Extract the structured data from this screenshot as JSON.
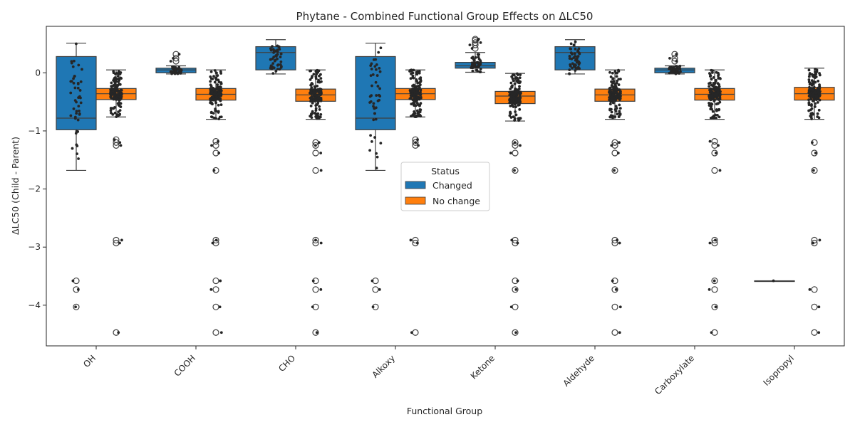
{
  "chart_data": {
    "type": "box",
    "title": "Phytane - Combined Functional Group Effects on ΔLC50",
    "xlabel": "Functional Group",
    "ylabel": "ΔLC50 (Child - Parent)",
    "ylim": [
      -4.7,
      0.8
    ],
    "yticks": [
      0,
      -1,
      -2,
      -3,
      -4
    ],
    "ytick_labels": [
      "0",
      "−1",
      "−2",
      "−3",
      "−4"
    ],
    "categories": [
      "OH",
      "COOH",
      "CHO",
      "Alkoxy",
      "Ketone",
      "Aldehyde",
      "Carboxylate",
      "Isopropyl"
    ],
    "legend": {
      "title": "Status",
      "placement": "center",
      "entries": [
        "Changed",
        "No change"
      ]
    },
    "colors": {
      "Changed": "#1f77b4",
      "No change": "#ff7f0e",
      "points": "#262626"
    },
    "series": [
      {
        "name": "Changed",
        "boxes": [
          {
            "q1": -0.98,
            "median": -0.78,
            "q3": 0.28,
            "whisker_low": -1.68,
            "whisker_high": 0.51,
            "outliers": [
              -3.58,
              -3.73,
              -4.03
            ]
          },
          {
            "q1": 0.0,
            "median": 0.05,
            "q3": 0.08,
            "whisker_low": -0.02,
            "whisker_high": 0.12,
            "outliers": [
              0.2,
              0.25,
              0.32
            ]
          },
          {
            "q1": 0.05,
            "median": 0.35,
            "q3": 0.45,
            "whisker_low": -0.02,
            "whisker_high": 0.57,
            "outliers": []
          },
          {
            "q1": -0.98,
            "median": -0.78,
            "q3": 0.28,
            "whisker_low": -1.68,
            "whisker_high": 0.51,
            "outliers": [
              -3.58,
              -3.73,
              -4.03
            ]
          },
          {
            "q1": 0.08,
            "median": 0.12,
            "q3": 0.18,
            "whisker_low": 0.01,
            "whisker_high": 0.35,
            "outliers": [
              0.42,
              0.48,
              0.52,
              0.56,
              0.58
            ]
          },
          {
            "q1": 0.05,
            "median": 0.35,
            "q3": 0.45,
            "whisker_low": -0.02,
            "whisker_high": 0.57,
            "outliers": []
          },
          {
            "q1": 0.0,
            "median": 0.05,
            "q3": 0.08,
            "whisker_low": -0.02,
            "whisker_high": 0.12,
            "outliers": [
              0.2,
              0.25,
              0.32
            ]
          },
          {
            "q1": -3.58,
            "median": -3.58,
            "q3": -3.58,
            "whisker_low": -3.58,
            "whisker_high": -3.58,
            "outliers": []
          }
        ]
      },
      {
        "name": "No change",
        "boxes": [
          {
            "q1": -0.46,
            "median": -0.36,
            "q3": -0.27,
            "whisker_low": -0.76,
            "whisker_high": 0.05,
            "outliers": [
              -1.15,
              -1.2,
              -1.25,
              -2.88,
              -2.93,
              -4.47
            ]
          },
          {
            "q1": -0.47,
            "median": -0.37,
            "q3": -0.27,
            "whisker_low": -0.8,
            "whisker_high": 0.05,
            "outliers": [
              -1.18,
              -1.25,
              -1.38,
              -1.68,
              -2.88,
              -2.93,
              -3.58,
              -3.73,
              -4.03,
              -4.47
            ]
          },
          {
            "q1": -0.49,
            "median": -0.38,
            "q3": -0.28,
            "whisker_low": -0.8,
            "whisker_high": 0.05,
            "outliers": [
              -1.2,
              -1.25,
              -1.38,
              -1.68,
              -2.88,
              -2.93,
              -3.58,
              -3.73,
              -4.03,
              -4.47
            ]
          },
          {
            "q1": -0.46,
            "median": -0.36,
            "q3": -0.27,
            "whisker_low": -0.76,
            "whisker_high": 0.05,
            "outliers": [
              -1.15,
              -1.2,
              -1.25,
              -2.88,
              -2.93,
              -4.47
            ]
          },
          {
            "q1": -0.53,
            "median": -0.4,
            "q3": -0.32,
            "whisker_low": -0.83,
            "whisker_high": -0.01,
            "outliers": [
              -1.2,
              -1.25,
              -1.38,
              -1.68,
              -2.88,
              -2.93,
              -3.58,
              -3.73,
              -4.03,
              -4.47
            ]
          },
          {
            "q1": -0.49,
            "median": -0.38,
            "q3": -0.28,
            "whisker_low": -0.8,
            "whisker_high": 0.05,
            "outliers": [
              -1.2,
              -1.25,
              -1.38,
              -1.68,
              -2.88,
              -2.93,
              -3.58,
              -3.73,
              -4.03,
              -4.47
            ]
          },
          {
            "q1": -0.47,
            "median": -0.37,
            "q3": -0.27,
            "whisker_low": -0.8,
            "whisker_high": 0.05,
            "outliers": [
              -1.18,
              -1.25,
              -1.38,
              -1.68,
              -2.88,
              -2.93,
              -3.58,
              -3.73,
              -4.03,
              -4.47
            ]
          },
          {
            "q1": -0.47,
            "median": -0.36,
            "q3": -0.25,
            "whisker_low": -0.8,
            "whisker_high": 0.08,
            "outliers": [
              -1.2,
              -1.38,
              -1.68,
              -2.88,
              -2.93,
              -3.73,
              -4.03,
              -4.47
            ]
          }
        ]
      }
    ]
  }
}
